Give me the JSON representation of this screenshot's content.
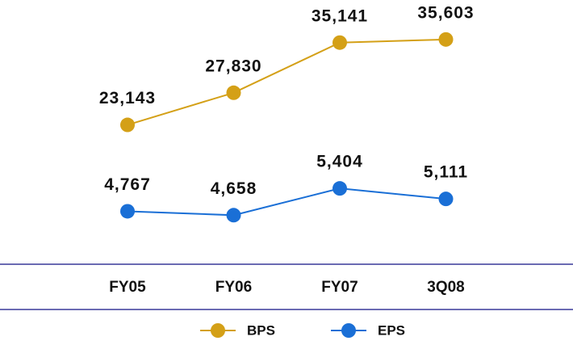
{
  "chart_data": {
    "type": "line",
    "categories": [
      "FY05",
      "FY06",
      "FY07",
      "3Q08"
    ],
    "series": [
      {
        "name": "BPS",
        "color": "#d4a017",
        "values": [
          23143,
          27830,
          35141,
          35603
        ],
        "value_labels": [
          "23,143",
          "27,830",
          "35,141",
          "35,603"
        ]
      },
      {
        "name": "EPS",
        "color": "#1a6fd6",
        "axis": "y2",
        "values": [
          4767,
          4658,
          5404,
          5111
        ],
        "value_labels": [
          "4,767",
          "4,658",
          "5,404",
          "5,111"
        ]
      }
    ],
    "ylim": [
      6000,
      39000
    ],
    "y2lim": [
      3900,
      10200
    ],
    "legend": "bottom",
    "grid": false
  }
}
